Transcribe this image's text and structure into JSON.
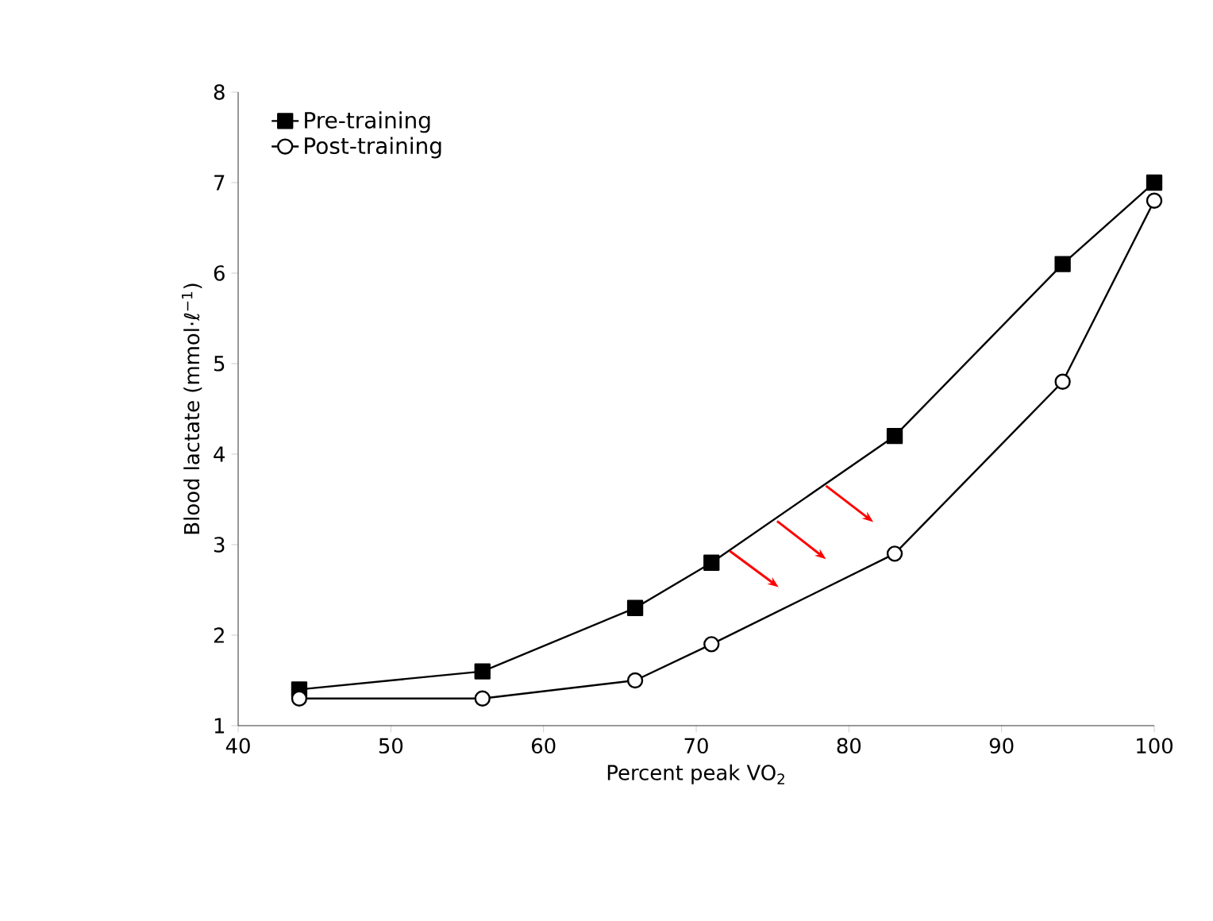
{
  "chart_data": {
    "type": "line",
    "xlabel": "Percent peak VO$_{2}$",
    "ylabel": "Blood lactate (mmol·ℓ$^{−1}$)",
    "xlim": [
      40,
      100
    ],
    "xticks": [
      40,
      50,
      60,
      70,
      80,
      90,
      100
    ],
    "ylim": [
      1,
      8
    ],
    "yticks": [
      1,
      2,
      3,
      4,
      5,
      6,
      7,
      8
    ],
    "legend": "top left",
    "grid": false,
    "line_style": "solid",
    "series": [
      {
        "name": "Pre-training",
        "color": "#000000",
        "marker": "square",
        "x": [
          44,
          56,
          66,
          71,
          83,
          94,
          100
        ],
        "values": [
          1.4,
          1.6,
          2.3,
          2.8,
          4.2,
          6.1,
          7.0
        ]
      },
      {
        "name": "Post-training",
        "color": "#000000",
        "marker": "circle",
        "x": [
          44,
          56,
          66,
          71,
          83,
          94,
          100
        ],
        "values": [
          1.3,
          1.3,
          1.5,
          1.9,
          2.9,
          4.8,
          6.8
        ]
      }
    ]
  }
}
